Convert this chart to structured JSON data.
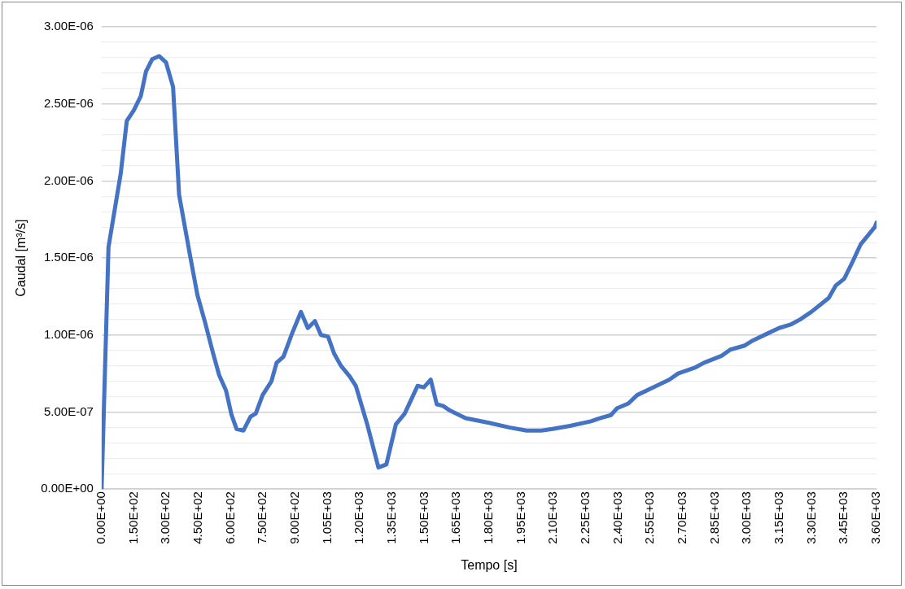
{
  "chart_data": {
    "type": "line",
    "xlabel": "Tempo [s]",
    "ylabel": "Caudal [m³/s]",
    "xlim": [
      0,
      3600
    ],
    "xticks": [
      {
        "value": 0,
        "label": "0.00E+00"
      },
      {
        "value": 150,
        "label": "1.50E+02"
      },
      {
        "value": 300,
        "label": "3.00E+02"
      },
      {
        "value": 450,
        "label": "4.50E+02"
      },
      {
        "value": 600,
        "label": "6.00E+02"
      },
      {
        "value": 750,
        "label": "7.50E+02"
      },
      {
        "value": 900,
        "label": "9.00E+02"
      },
      {
        "value": 1050,
        "label": "1.05E+03"
      },
      {
        "value": 1200,
        "label": "1.20E+03"
      },
      {
        "value": 1350,
        "label": "1.35E+03"
      },
      {
        "value": 1500,
        "label": "1.50E+03"
      },
      {
        "value": 1650,
        "label": "1.65E+03"
      },
      {
        "value": 1800,
        "label": "1.80E+03"
      },
      {
        "value": 1950,
        "label": "1.95E+03"
      },
      {
        "value": 2100,
        "label": "2.10E+03"
      },
      {
        "value": 2250,
        "label": "2.25E+03"
      },
      {
        "value": 2400,
        "label": "2.40E+03"
      },
      {
        "value": 2550,
        "label": "2.55E+03"
      },
      {
        "value": 2700,
        "label": "2.70E+03"
      },
      {
        "value": 2850,
        "label": "2.85E+03"
      },
      {
        "value": 3000,
        "label": "3.00E+03"
      },
      {
        "value": 3150,
        "label": "3.15E+03"
      },
      {
        "value": 3300,
        "label": "3.30E+03"
      },
      {
        "value": 3450,
        "label": "3.45E+03"
      },
      {
        "value": 3600,
        "label": "3.60E+03"
      }
    ],
    "ylim": [
      0,
      3e-06
    ],
    "yticks": [
      {
        "value": 0,
        "label": "0.00E+00"
      },
      {
        "value": 1e-07,
        "label": null
      },
      {
        "value": 2e-07,
        "label": null
      },
      {
        "value": 3e-07,
        "label": null
      },
      {
        "value": 4e-07,
        "label": null
      },
      {
        "value": 5e-07,
        "label": "5.00E-07"
      },
      {
        "value": 6e-07,
        "label": null
      },
      {
        "value": 7e-07,
        "label": null
      },
      {
        "value": 8e-07,
        "label": null
      },
      {
        "value": 9e-07,
        "label": null
      },
      {
        "value": 1e-06,
        "label": "1.00E-06"
      },
      {
        "value": 1.1e-06,
        "label": null
      },
      {
        "value": 1.2e-06,
        "label": null
      },
      {
        "value": 1.3e-06,
        "label": null
      },
      {
        "value": 1.4e-06,
        "label": null
      },
      {
        "value": 1.5e-06,
        "label": "1.50E-06"
      },
      {
        "value": 1.6e-06,
        "label": null
      },
      {
        "value": 1.7e-06,
        "label": null
      },
      {
        "value": 1.8e-06,
        "label": null
      },
      {
        "value": 1.9e-06,
        "label": null
      },
      {
        "value": 2e-06,
        "label": "2.00E-06"
      },
      {
        "value": 2.1e-06,
        "label": null
      },
      {
        "value": 2.2e-06,
        "label": null
      },
      {
        "value": 2.3e-06,
        "label": null
      },
      {
        "value": 2.4e-06,
        "label": null
      },
      {
        "value": 2.5e-06,
        "label": "2.50E-06"
      },
      {
        "value": 2.6e-06,
        "label": null
      },
      {
        "value": 2.7e-06,
        "label": null
      },
      {
        "value": 2.8e-06,
        "label": null
      },
      {
        "value": 2.9e-06,
        "label": null
      },
      {
        "value": 3e-06,
        "label": "3.00E-06"
      }
    ],
    "grid": "y",
    "legend": false,
    "marker": "none",
    "line_style": "solid",
    "series": [
      {
        "color": "#4472c4",
        "x": [
          0,
          32,
          89,
          117,
          150,
          182,
          206,
          235,
          267,
          299,
          332,
          360,
          409,
          445,
          481,
          518,
          546,
          578,
          603,
          627,
          659,
          692,
          716,
          748,
          789,
          813,
          845,
          882,
          926,
          958,
          991,
          1019,
          1052,
          1080,
          1112,
          1153,
          1181,
          1234,
          1286,
          1323,
          1367,
          1408,
          1468,
          1497,
          1529,
          1557,
          1586,
          1618,
          1691,
          1800,
          1893,
          1974,
          2043,
          2095,
          2176,
          2273,
          2314,
          2366,
          2395,
          2447,
          2488,
          2556,
          2637,
          2678,
          2759,
          2799,
          2880,
          2921,
          2985,
          3026,
          3094,
          3147,
          3204,
          3244,
          3297,
          3378,
          3410,
          3450,
          3487,
          3527,
          3592,
          3600
        ],
        "values": [
          0,
          1.57e-06,
          2.05e-06,
          2.39e-06,
          2.46e-06,
          2.55e-06,
          2.71e-06,
          2.79e-06,
          2.81e-06,
          2.77e-06,
          2.61e-06,
          1.91e-06,
          1.53e-06,
          1.26e-06,
          1.08e-06,
          8.8e-07,
          7.4e-07,
          6.4e-07,
          4.85e-07,
          3.9e-07,
          3.8e-07,
          4.7e-07,
          4.9e-07,
          6.1e-07,
          7e-07,
          8.2e-07,
          8.6e-07,
          1e-06,
          1.15e-06,
          1.045e-06,
          1.09e-06,
          1e-06,
          9.9e-07,
          8.8e-07,
          8e-07,
          7.3e-07,
          6.7e-07,
          4.2e-07,
          1.4e-07,
          1.6e-07,
          4.2e-07,
          4.9e-07,
          6.7e-07,
          6.6e-07,
          7.1e-07,
          5.5e-07,
          5.4e-07,
          5.1e-07,
          4.6e-07,
          4.3e-07,
          4e-07,
          3.8e-07,
          3.8e-07,
          3.9e-07,
          4.1e-07,
          4.4e-07,
          4.6e-07,
          4.8e-07,
          5.25e-07,
          5.55e-07,
          6.1e-07,
          6.55e-07,
          7.1e-07,
          7.5e-07,
          7.9e-07,
          8.2e-07,
          8.65e-07,
          9.05e-07,
          9.3e-07,
          9.65e-07,
          1.01e-06,
          1.045e-06,
          1.07e-06,
          1.1e-06,
          1.15e-06,
          1.24e-06,
          1.32e-06,
          1.365e-06,
          1.47e-06,
          1.59e-06,
          1.7e-06,
          1.73e-06
        ]
      }
    ]
  }
}
